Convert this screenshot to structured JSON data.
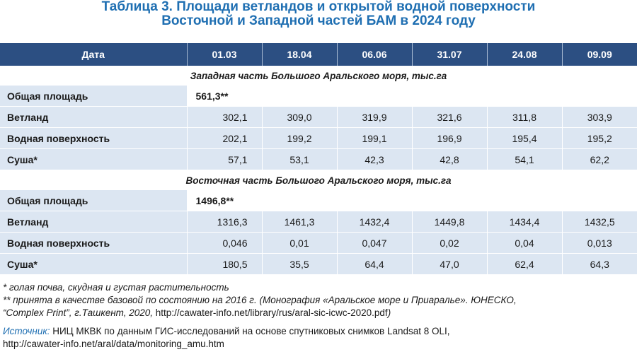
{
  "title": {
    "line1": "Таблица 3. Площади ветландов и открытой водной поверхности",
    "line2": "Восточной и Западной частей БАМ в 2024 году"
  },
  "colors": {
    "title": "#1f6fb2",
    "header_bg": "#2c4f82",
    "row_bg": "#dce6f2",
    "source_label": "#1f6fb2"
  },
  "table": {
    "header": {
      "label": "Дата",
      "dates": [
        "01.03",
        "18.04",
        "06.06",
        "31.07",
        "24.08",
        "09.09"
      ]
    },
    "sections": [
      {
        "title": "Западная часть Большого Аральского моря, тыс.га",
        "total_label": "Общая площадь",
        "total_value": "561,3**",
        "rows": [
          {
            "label": "Ветланд",
            "values": [
              "302,1",
              "309,0",
              "319,9",
              "321,6",
              "311,8",
              "303,9"
            ]
          },
          {
            "label": "Водная поверхность",
            "values": [
              "202,1",
              "199,2",
              "199,1",
              "196,9",
              "195,4",
              "195,2"
            ]
          },
          {
            "label": "Суша*",
            "values": [
              "57,1",
              "53,1",
              "42,3",
              "42,8",
              "54,1",
              "62,2"
            ]
          }
        ]
      },
      {
        "title": "Восточная часть Большого Аральского моря, тыс.га",
        "total_label": "Общая площадь",
        "total_value": "1496,8**",
        "rows": [
          {
            "label": "Ветланд",
            "values": [
              "1316,3",
              "1461,3",
              "1432,4",
              "1449,8",
              "1434,4",
              "1432,5"
            ]
          },
          {
            "label": "Водная поверхность",
            "values": [
              "0,046",
              "0,01",
              "0,047",
              "0,02",
              "0,04",
              "0,013"
            ]
          },
          {
            "label": "Суша*",
            "values": [
              "180,5",
              "35,5",
              "64,4",
              "47,0",
              "62,4",
              "64,3"
            ]
          }
        ]
      }
    ]
  },
  "notes": {
    "note1": "* голая почва, скудная и густая растительность",
    "note2": "** принята в качестве базовой по состоянию на 2016 г. (Монография «Аральское море и Приаралье». ЮНЕСКО,",
    "note3_text": "“Complex Print”, г.Ташкент, 2020, ",
    "note3_url": "http://cawater-info.net/library/rus/aral-sic-icwc-2020.pdf",
    "note3_end": ")"
  },
  "source": {
    "label": "Источник:",
    "text": " НИЦ МКВК по данным ГИС-исследований на основе спутниковых снимков Landsat 8 OLI,",
    "url": "http://cawater-info.net/aral/data/monitoring_amu.htm"
  }
}
